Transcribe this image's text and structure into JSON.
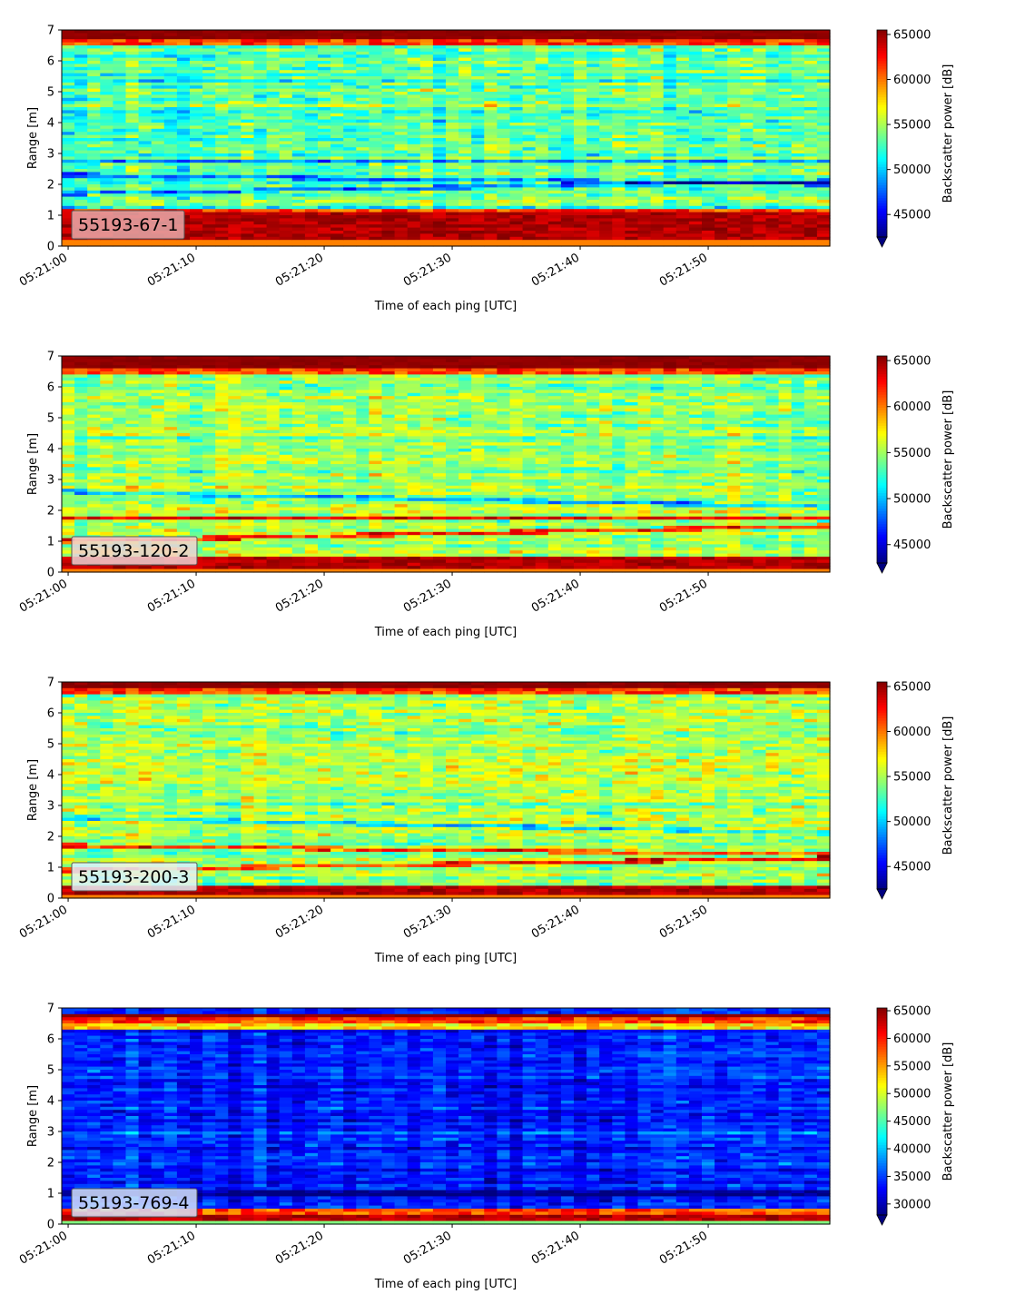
{
  "chart_data": [
    {
      "type": "heatmap",
      "label": "55193-67-1",
      "xlabel": "Time of each ping [UTC]",
      "ylabel": "Range [m]",
      "x_ticks": [
        "05:21:00",
        "05:21:10",
        "05:21:20",
        "05:21:30",
        "05:21:40",
        "05:21:50"
      ],
      "y_ticks": [
        "0",
        "1",
        "2",
        "3",
        "4",
        "5",
        "6",
        "7"
      ],
      "ylim": [
        0,
        7
      ],
      "x_range_seconds": [
        -0.5,
        59.5
      ],
      "colorbar": {
        "label": "Backscatter power [dB]",
        "ticks": [
          "45000",
          "50000",
          "55000",
          "60000",
          "65000"
        ],
        "range": [
          42500,
          65500
        ],
        "colormap": "jet",
        "extend": "min"
      },
      "features": {
        "surface_band": [
          6.5,
          7.0
        ],
        "bottom_band": [
          0.2,
          1.1
        ],
        "layers": [
          [
            2.3,
            -0.03
          ],
          [
            1.7,
            0.04
          ],
          [
            2.75,
            0.0
          ]
        ]
      }
    },
    {
      "type": "heatmap",
      "label": "55193-120-2",
      "xlabel": "Time of each ping [UTC]",
      "ylabel": "Range [m]",
      "x_ticks": [
        "05:21:00",
        "05:21:10",
        "05:21:20",
        "05:21:30",
        "05:21:40",
        "05:21:50"
      ],
      "y_ticks": [
        "0",
        "1",
        "2",
        "3",
        "4",
        "5",
        "6",
        "7"
      ],
      "ylim": [
        0,
        7
      ],
      "x_range_seconds": [
        -0.5,
        59.5
      ],
      "colorbar": {
        "label": "Backscatter power [dB]",
        "ticks": [
          "45000",
          "50000",
          "55000",
          "60000",
          "65000"
        ],
        "range": [
          43000,
          65500
        ],
        "colormap": "jet",
        "extend": "min"
      },
      "features": {
        "surface_band": [
          6.4,
          7.0
        ],
        "bottom_band": [
          0.1,
          0.5
        ],
        "layers": [
          [
            2.6,
            -0.05
          ],
          [
            1.75,
            0.0
          ],
          [
            1.0,
            0.05
          ]
        ]
      }
    },
    {
      "type": "heatmap",
      "label": "55193-200-3",
      "xlabel": "Time of each ping [UTC]",
      "ylabel": "Range [m]",
      "x_ticks": [
        "05:21:00",
        "05:21:10",
        "05:21:20",
        "05:21:30",
        "05:21:40",
        "05:21:50"
      ],
      "y_ticks": [
        "0",
        "1",
        "2",
        "3",
        "4",
        "5",
        "6",
        "7"
      ],
      "ylim": [
        0,
        7
      ],
      "x_range_seconds": [
        -0.5,
        59.5
      ],
      "colorbar": {
        "label": "Backscatter power [dB]",
        "ticks": [
          "45000",
          "50000",
          "55000",
          "60000",
          "65000"
        ],
        "range": [
          42500,
          65500
        ],
        "colormap": "jet",
        "extend": "min"
      },
      "features": {
        "surface_band": [
          6.6,
          7.0
        ],
        "bottom_band": [
          0.1,
          0.35
        ],
        "layers": [
          [
            2.6,
            -0.05
          ],
          [
            1.7,
            -0.03
          ],
          [
            0.9,
            0.04
          ]
        ]
      }
    },
    {
      "type": "heatmap",
      "label": "55193-769-4",
      "xlabel": "Time of each ping [UTC]",
      "ylabel": "Range [m]",
      "x_ticks": [
        "05:21:00",
        "05:21:10",
        "05:21:20",
        "05:21:30",
        "05:21:40",
        "05:21:50"
      ],
      "y_ticks": [
        "0",
        "1",
        "2",
        "3",
        "4",
        "5",
        "6",
        "7"
      ],
      "ylim": [
        0,
        7
      ],
      "x_range_seconds": [
        -0.5,
        59.5
      ],
      "colorbar": {
        "label": "Backscatter power [dB]",
        "ticks": [
          "30000",
          "35000",
          "40000",
          "45000",
          "50000",
          "55000",
          "60000",
          "65000"
        ],
        "range": [
          28000,
          65500
        ],
        "colormap": "jet",
        "extend": "min"
      },
      "features": {
        "surface_band": [
          6.5,
          6.8
        ],
        "bottom_band": [
          0.1,
          0.3
        ],
        "layers": [
          [
            1.0,
            0.0
          ]
        ]
      }
    }
  ]
}
